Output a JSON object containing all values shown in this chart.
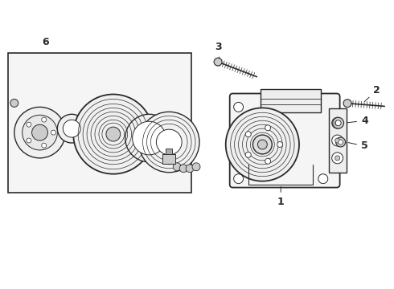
{
  "background_color": "#ffffff",
  "line_color": "#2a2a2a",
  "gray1": "#aaaaaa",
  "gray2": "#cccccc",
  "gray3": "#888888",
  "box_fill": "#f0f0f0",
  "figsize": [
    4.9,
    3.6
  ],
  "dpi": 100
}
